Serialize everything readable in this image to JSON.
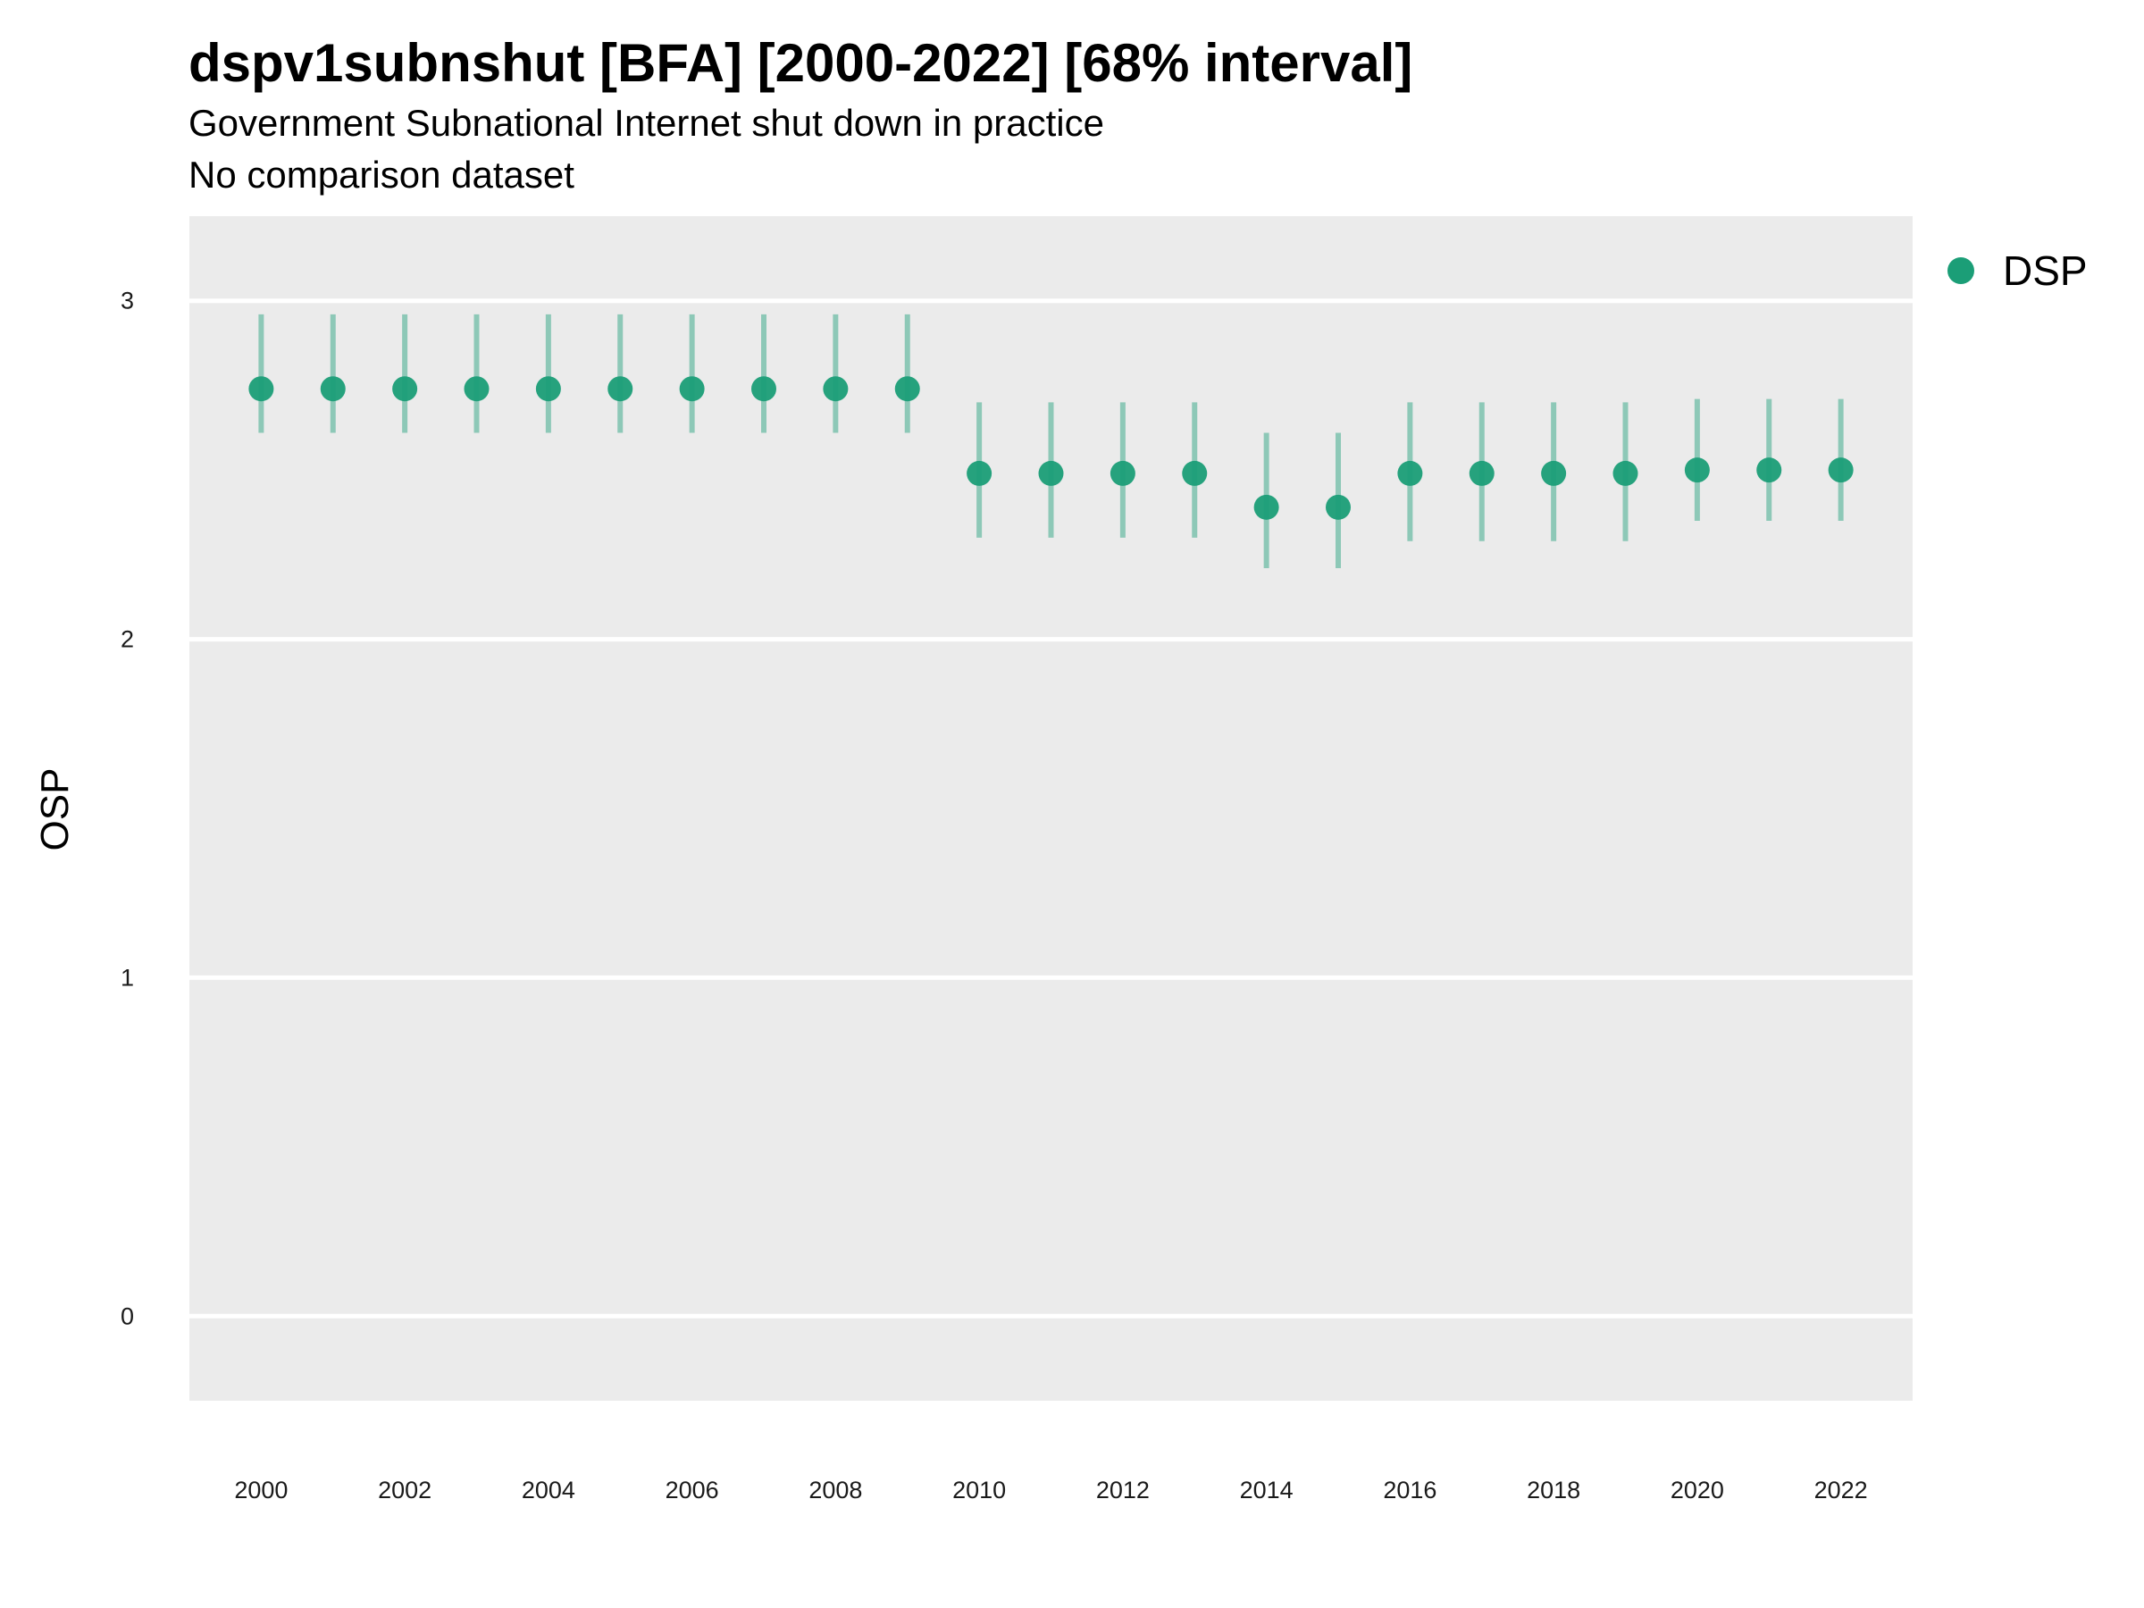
{
  "chart_data": {
    "type": "scatter",
    "title": "dspv1subnshut [BFA] [2000-2022] [68% interval]",
    "subtitles": [
      "Government Subnational Internet shut down in practice",
      "No comparison dataset"
    ],
    "xlabel": "",
    "ylabel": "OSP",
    "xlim": [
      1999,
      2023
    ],
    "ylim": [
      -0.25,
      3.25
    ],
    "x_ticks": [
      2000,
      2002,
      2004,
      2006,
      2008,
      2010,
      2012,
      2014,
      2016,
      2018,
      2020,
      2022
    ],
    "y_ticks": [
      0,
      1,
      2,
      3
    ],
    "grid": true,
    "legend": {
      "position": "right",
      "entries": [
        "DSP"
      ]
    },
    "series": [
      {
        "name": "DSP",
        "color": "#1b9e77",
        "points": [
          {
            "x": 2000,
            "y": 2.74,
            "lo": 2.61,
            "hi": 2.96
          },
          {
            "x": 2001,
            "y": 2.74,
            "lo": 2.61,
            "hi": 2.96
          },
          {
            "x": 2002,
            "y": 2.74,
            "lo": 2.61,
            "hi": 2.96
          },
          {
            "x": 2003,
            "y": 2.74,
            "lo": 2.61,
            "hi": 2.96
          },
          {
            "x": 2004,
            "y": 2.74,
            "lo": 2.61,
            "hi": 2.96
          },
          {
            "x": 2005,
            "y": 2.74,
            "lo": 2.61,
            "hi": 2.96
          },
          {
            "x": 2006,
            "y": 2.74,
            "lo": 2.61,
            "hi": 2.96
          },
          {
            "x": 2007,
            "y": 2.74,
            "lo": 2.61,
            "hi": 2.96
          },
          {
            "x": 2008,
            "y": 2.74,
            "lo": 2.61,
            "hi": 2.96
          },
          {
            "x": 2009,
            "y": 2.74,
            "lo": 2.61,
            "hi": 2.96
          },
          {
            "x": 2010,
            "y": 2.49,
            "lo": 2.3,
            "hi": 2.7
          },
          {
            "x": 2011,
            "y": 2.49,
            "lo": 2.3,
            "hi": 2.7
          },
          {
            "x": 2012,
            "y": 2.49,
            "lo": 2.3,
            "hi": 2.7
          },
          {
            "x": 2013,
            "y": 2.49,
            "lo": 2.3,
            "hi": 2.7
          },
          {
            "x": 2014,
            "y": 2.39,
            "lo": 2.21,
            "hi": 2.61
          },
          {
            "x": 2015,
            "y": 2.39,
            "lo": 2.21,
            "hi": 2.61
          },
          {
            "x": 2016,
            "y": 2.49,
            "lo": 2.29,
            "hi": 2.7
          },
          {
            "x": 2017,
            "y": 2.49,
            "lo": 2.29,
            "hi": 2.7
          },
          {
            "x": 2018,
            "y": 2.49,
            "lo": 2.29,
            "hi": 2.7
          },
          {
            "x": 2019,
            "y": 2.49,
            "lo": 2.29,
            "hi": 2.7
          },
          {
            "x": 2020,
            "y": 2.5,
            "lo": 2.35,
            "hi": 2.71
          },
          {
            "x": 2021,
            "y": 2.5,
            "lo": 2.35,
            "hi": 2.71
          },
          {
            "x": 2022,
            "y": 2.5,
            "lo": 2.35,
            "hi": 2.71
          }
        ]
      }
    ]
  }
}
